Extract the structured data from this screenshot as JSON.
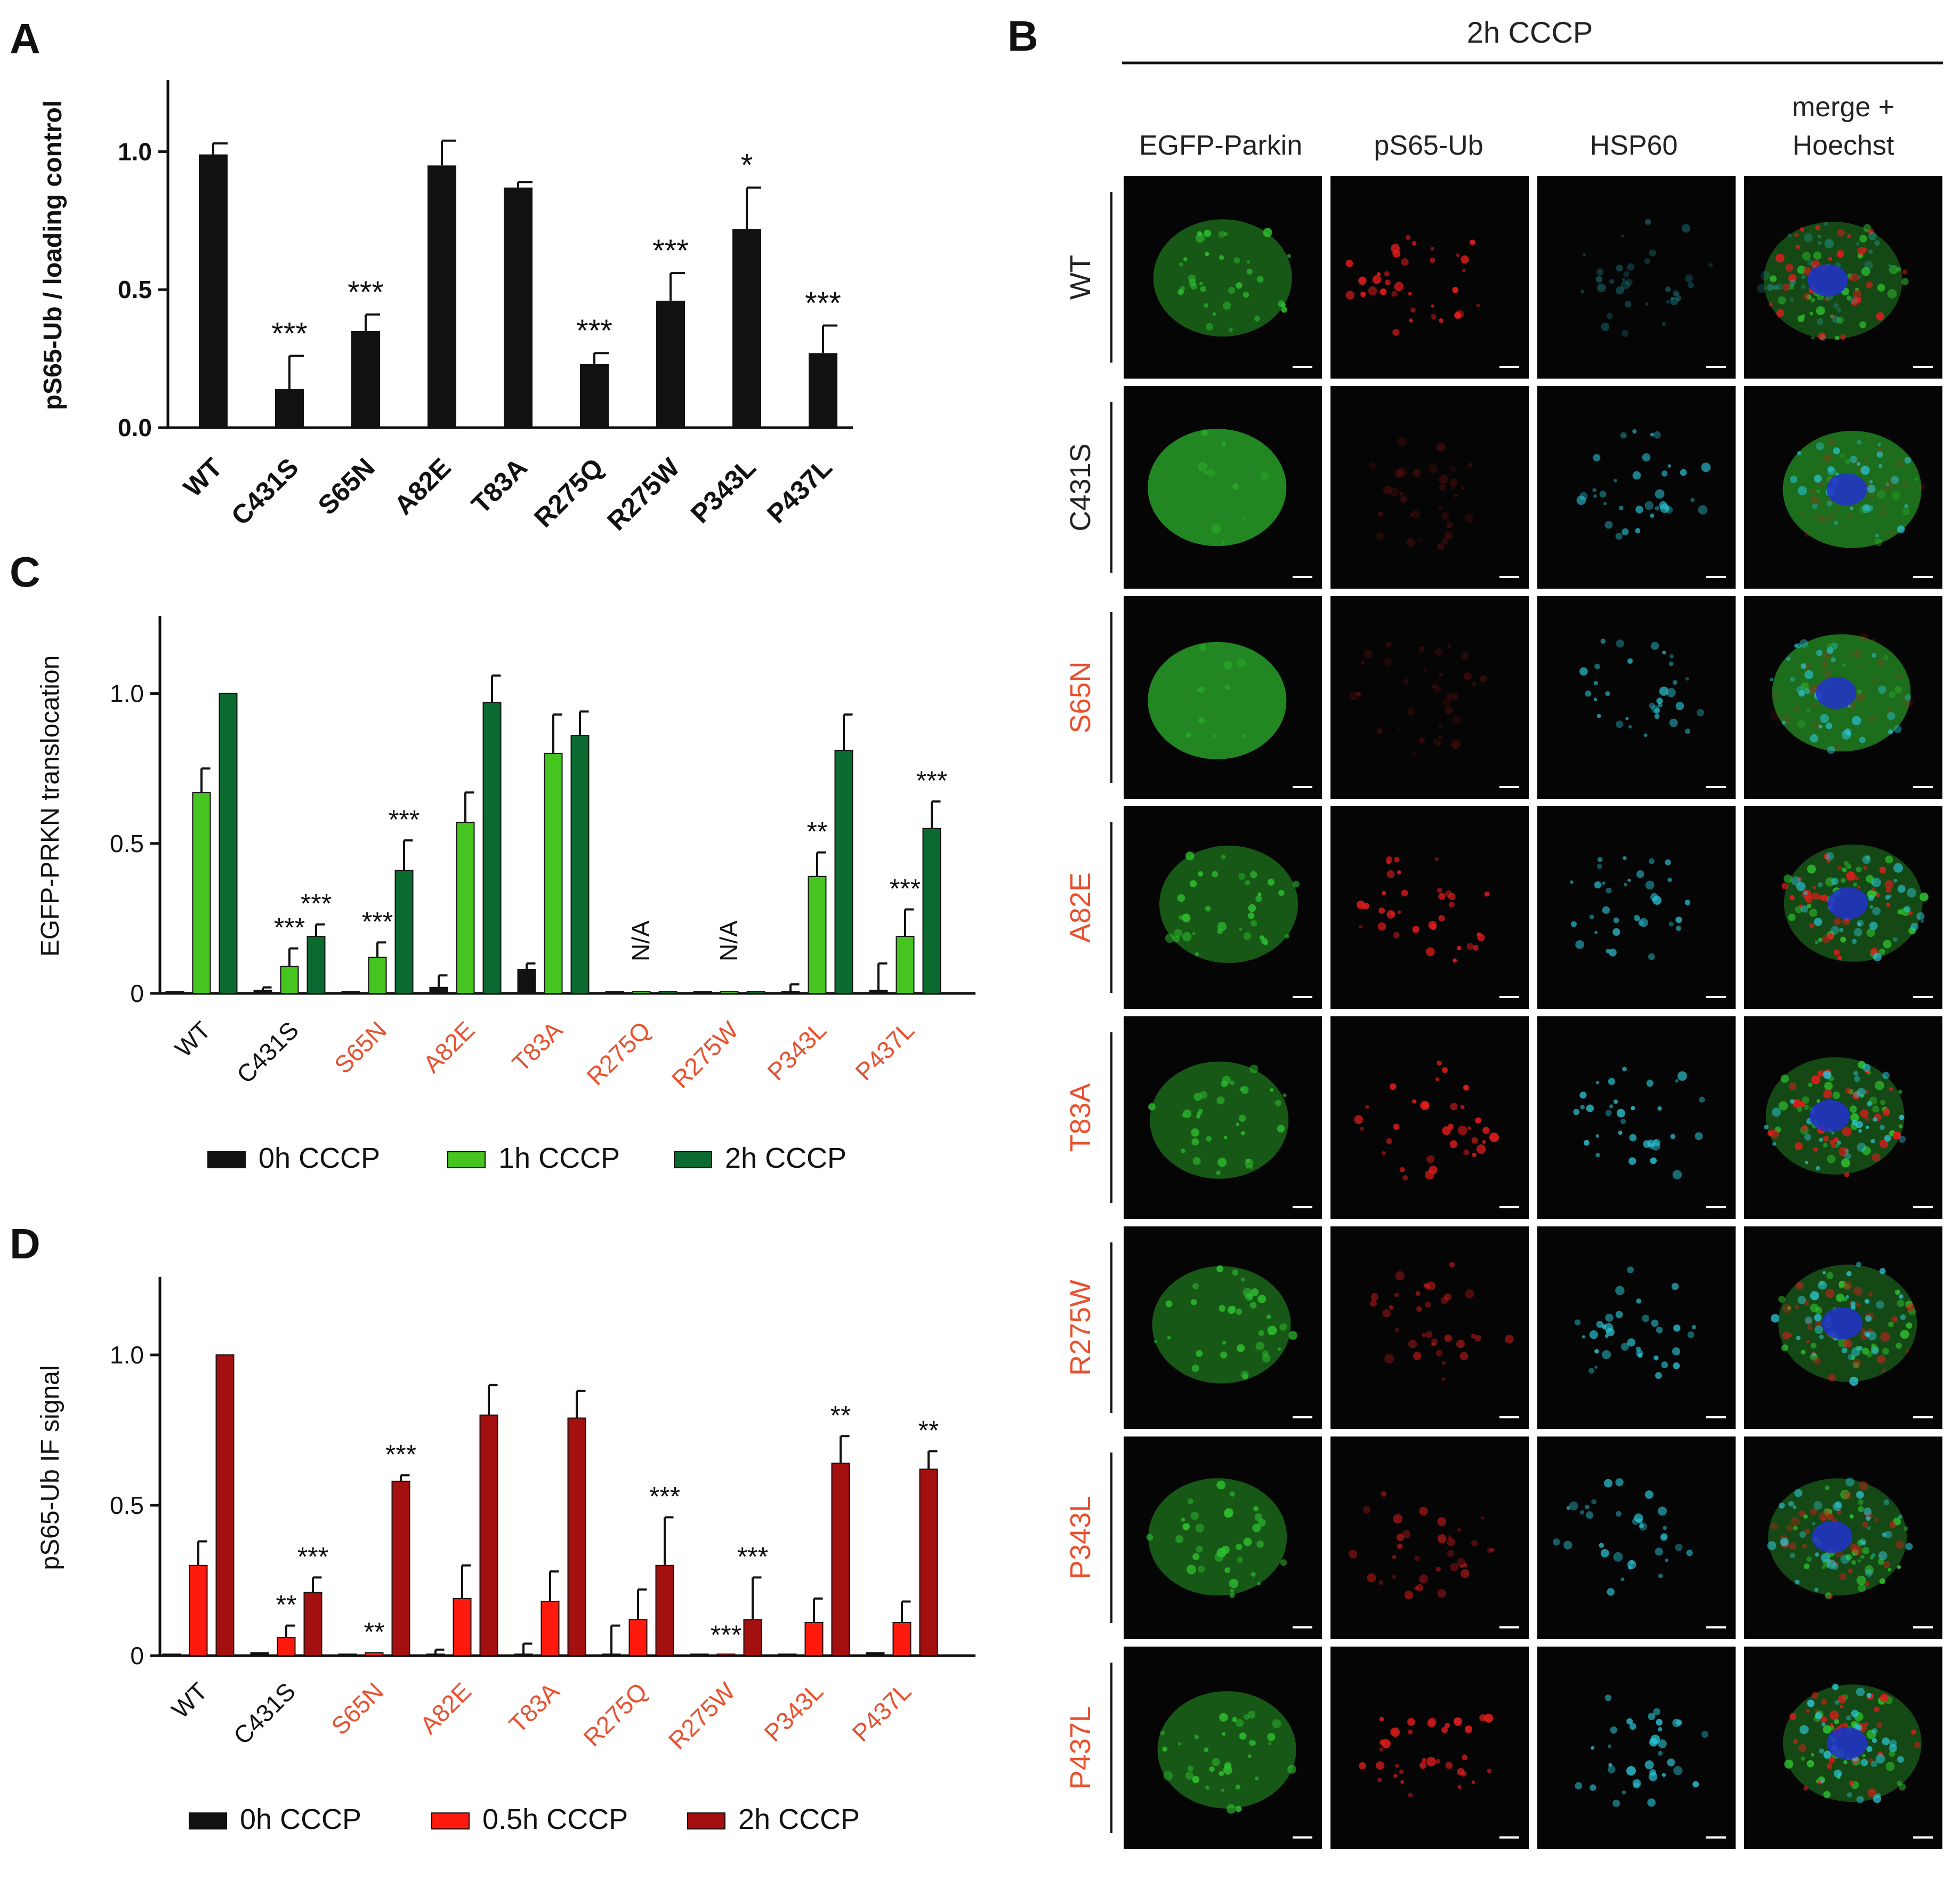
{
  "colors": {
    "black": "#111111",
    "mutant_label": "#e8512f",
    "control_label": "#111111",
    "green_light": "#46c41f",
    "green_dark": "#0b6a30",
    "red_light": "#ff1a0d",
    "red_dark": "#a40f0f",
    "micro_background": "#050505",
    "egfp": "#2fbf2f",
    "ps65": "#e01c1c",
    "hsp60": "#2bc4d4"
  },
  "panel_letters": {
    "a": "A",
    "b": "B",
    "c": "C",
    "d": "D"
  },
  "chart_data": [
    {
      "id": "A",
      "type": "bar",
      "title": "",
      "xlabel": "",
      "ylabel": "pS65-Ub / loading control",
      "ylim": [
        0,
        1.25
      ],
      "yticks": [
        "0.0",
        "0.5",
        "1.0"
      ],
      "grid": false,
      "categories": [
        "WT",
        "C431S",
        "S65N",
        "A82E",
        "T83A",
        "R275Q",
        "R275W",
        "P343L",
        "P437L"
      ],
      "series": [
        {
          "name": "pS65-Ub",
          "color": "#111111",
          "values": [
            0.99,
            0.14,
            0.35,
            0.95,
            0.87,
            0.23,
            0.46,
            0.72,
            0.27
          ],
          "errors": [
            0.04,
            0.12,
            0.06,
            0.09,
            0.02,
            0.04,
            0.1,
            0.15,
            0.1
          ],
          "significance": [
            "",
            "***",
            "***",
            "",
            "",
            "***",
            "***",
            "*",
            "***"
          ]
        }
      ]
    },
    {
      "id": "C",
      "type": "bar",
      "title": "",
      "xlabel": "",
      "ylabel": "EGFP-PRKN translocation",
      "ylim": [
        0,
        1.25
      ],
      "yticks": [
        "0",
        "0.5",
        "1.0"
      ],
      "grid": false,
      "categories": [
        "WT",
        "C431S",
        "S65N",
        "A82E",
        "T83A",
        "R275Q",
        "R275W",
        "P343L",
        "P437L"
      ],
      "category_highlight": [
        false,
        false,
        true,
        true,
        true,
        true,
        true,
        true,
        true
      ],
      "na_label": "N/A",
      "na_categories": [
        "R275Q",
        "R275W"
      ],
      "legend_position": "bottom",
      "series": [
        {
          "name": "0h CCCP",
          "color": "#111111",
          "values": [
            0.0,
            0.01,
            0.0,
            0.02,
            0.08,
            0.0,
            0.0,
            0.0,
            0.01
          ],
          "errors": [
            0.0,
            0.01,
            0.0,
            0.04,
            0.02,
            0.0,
            0.0,
            0.03,
            0.09
          ],
          "significance": [
            "",
            "",
            "",
            "",
            "",
            "",
            "",
            "",
            ""
          ]
        },
        {
          "name": "1h CCCP",
          "color": "#46c41f",
          "values": [
            0.67,
            0.09,
            0.12,
            0.57,
            0.8,
            0.0,
            0.0,
            0.39,
            0.19
          ],
          "errors": [
            0.08,
            0.06,
            0.05,
            0.1,
            0.13,
            0.0,
            0.0,
            0.08,
            0.09
          ],
          "significance": [
            "",
            "***",
            "***",
            "",
            "",
            "",
            "",
            "**",
            "***"
          ]
        },
        {
          "name": "2h CCCP",
          "color": "#0b6a30",
          "values": [
            1.0,
            0.19,
            0.41,
            0.97,
            0.86,
            0.0,
            0.0,
            0.81,
            0.55
          ],
          "errors": [
            0.0,
            0.04,
            0.1,
            0.09,
            0.08,
            0.0,
            0.0,
            0.12,
            0.09
          ],
          "significance": [
            "",
            "***",
            "***",
            "",
            "",
            "",
            "",
            "",
            "***"
          ]
        }
      ]
    },
    {
      "id": "D",
      "type": "bar",
      "title": "",
      "xlabel": "",
      "ylabel": "pS65-Ub IF signal",
      "ylim": [
        0,
        1.25
      ],
      "yticks": [
        "0",
        "0.5",
        "1.0"
      ],
      "grid": false,
      "categories": [
        "WT",
        "C431S",
        "S65N",
        "A82E",
        "T83A",
        "R275Q",
        "R275W",
        "P343L",
        "P437L"
      ],
      "category_highlight": [
        false,
        false,
        true,
        true,
        true,
        true,
        true,
        true,
        true
      ],
      "legend_position": "bottom",
      "series": [
        {
          "name": "0h CCCP",
          "color": "#111111",
          "values": [
            0.0,
            0.01,
            0.0,
            0.0,
            0.0,
            0.0,
            0.0,
            0.0,
            0.01
          ],
          "errors": [
            0.0,
            0.0,
            0.0,
            0.02,
            0.04,
            0.1,
            0.0,
            0.0,
            0.0
          ],
          "significance": [
            "",
            "",
            "",
            "",
            "",
            "",
            "",
            "",
            ""
          ]
        },
        {
          "name": "0.5h CCCP",
          "color": "#ff1a0d",
          "values": [
            0.3,
            0.06,
            0.01,
            0.19,
            0.18,
            0.12,
            0.0,
            0.11,
            0.11
          ],
          "errors": [
            0.08,
            0.04,
            0.0,
            0.11,
            0.1,
            0.1,
            0.0,
            0.08,
            0.07
          ],
          "significance": [
            "",
            "**",
            "**",
            "",
            "",
            "",
            "***",
            "",
            ""
          ]
        },
        {
          "name": "2h CCCP",
          "color": "#a40f0f",
          "values": [
            1.0,
            0.21,
            0.58,
            0.8,
            0.79,
            0.3,
            0.12,
            0.64,
            0.62
          ],
          "errors": [
            0.0,
            0.05,
            0.02,
            0.1,
            0.09,
            0.16,
            0.14,
            0.09,
            0.06
          ],
          "significance": [
            "",
            "***",
            "***",
            "",
            "",
            "***",
            "***",
            "**",
            "**"
          ]
        }
      ]
    }
  ],
  "microscopy": {
    "treatment": "2h CCCP",
    "columns": [
      "EGFP-Parkin",
      "pS65-Ub",
      "HSP60"
    ],
    "merge_label_line1": "merge +",
    "merge_label_line2": "Hoechst",
    "rows": [
      {
        "label": "WT",
        "highlight": false,
        "egfp": "punctate",
        "ps65": "strong",
        "hsp60": "weak"
      },
      {
        "label": "C431S",
        "highlight": false,
        "egfp": "diffuse",
        "ps65": "faint",
        "hsp60": "network"
      },
      {
        "label": "S65N",
        "highlight": true,
        "egfp": "diffuse",
        "ps65": "faint",
        "hsp60": "network"
      },
      {
        "label": "A82E",
        "highlight": true,
        "egfp": "punctate",
        "ps65": "strong",
        "hsp60": "network"
      },
      {
        "label": "T83A",
        "highlight": true,
        "egfp": "punctate",
        "ps65": "strong",
        "hsp60": "clustered"
      },
      {
        "label": "R275W",
        "highlight": true,
        "egfp": "punctate",
        "ps65": "medium",
        "hsp60": "clustered"
      },
      {
        "label": "P343L",
        "highlight": true,
        "egfp": "punctate",
        "ps65": "medium",
        "hsp60": "network"
      },
      {
        "label": "P437L",
        "highlight": true,
        "egfp": "punctate",
        "ps65": "strong",
        "hsp60": "clustered"
      }
    ]
  }
}
